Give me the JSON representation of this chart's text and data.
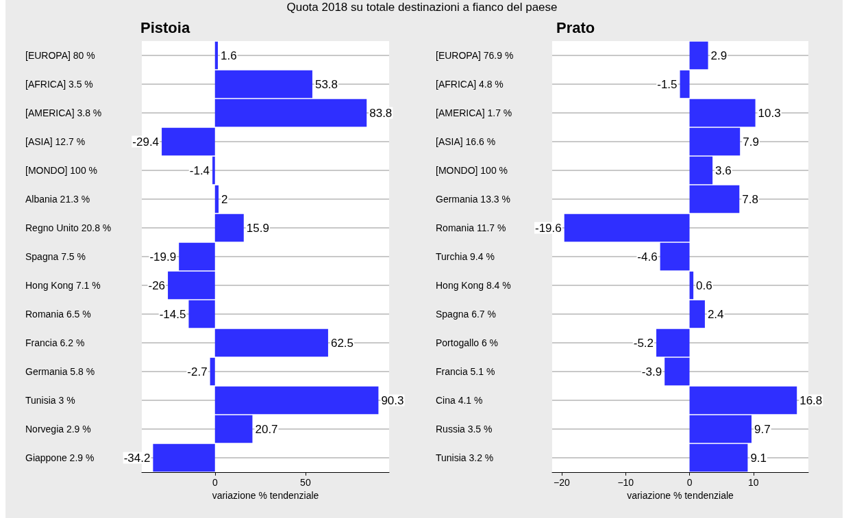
{
  "chart_data": [
    {
      "type": "bar",
      "orientation": "horizontal",
      "title": "Pistoia",
      "subtitle": "Quota 2018 su totale destinazioni a fianco del paese",
      "xlabel": "variazione % tendenziale",
      "categories": [
        "[EUROPA] 80 %",
        "[AFRICA] 3.5 %",
        "[AMERICA] 3.8 %",
        "[ASIA] 12.7 %",
        "[MONDO] 100 %",
        "Albania 21.3 %",
        "Regno Unito 20.8 %",
        "Spagna 7.5 %",
        "Hong Kong 7.1 %",
        "Romania 6.5 %",
        "Francia 6.2 %",
        "Germania 5.8 %",
        "Tunisia 3 %",
        "Norvegia 2.9 %",
        "Giappone 2.9 %"
      ],
      "values": [
        1.6,
        53.8,
        83.8,
        -29.4,
        -1.4,
        2,
        15.9,
        -19.9,
        -26,
        -14.5,
        62.5,
        -2.7,
        90.3,
        20.7,
        -34.2
      ],
      "color": "#2f2fff",
      "xlim": [
        -40.4,
        96.2
      ],
      "xticks": [
        0,
        50
      ],
      "grid": "y",
      "data_labels": true
    },
    {
      "type": "bar",
      "orientation": "horizontal",
      "title": "Prato",
      "xlabel": "variazione % tendenziale",
      "categories": [
        "[EUROPA] 76.9 %",
        "[AFRICA] 4.8 %",
        "[AMERICA] 1.7 %",
        "[ASIA] 16.6 %",
        "[MONDO] 100 %",
        "Germania 13.3 %",
        "Romania 11.7 %",
        "Turchia 9.4 %",
        "Hong Kong 8.4 %",
        "Spagna 6.7 %",
        "Portogallo 6 %",
        "Francia 5.1 %",
        "Cina 4.1 %",
        "Russia 3.5 %",
        "Tunisia 3.2 %"
      ],
      "values": [
        2.9,
        -1.5,
        10.3,
        7.9,
        3.6,
        7.8,
        -19.6,
        -4.6,
        0.6,
        2.4,
        -5.2,
        -3.9,
        16.8,
        9.7,
        9.1
      ],
      "color": "#2f2fff",
      "xlim": [
        -21.5,
        18.6
      ],
      "xticks": [
        -20,
        -10,
        0,
        10
      ],
      "grid": "y",
      "data_labels": true
    }
  ]
}
